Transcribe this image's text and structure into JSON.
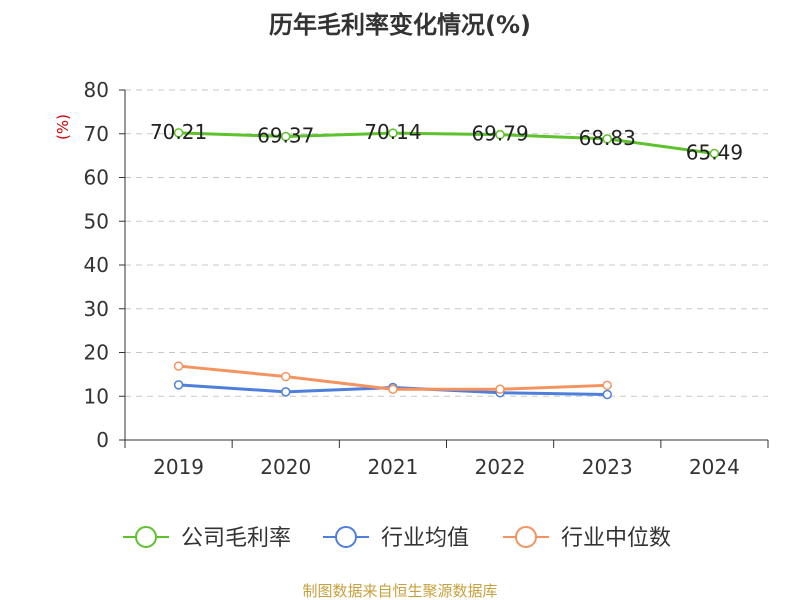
{
  "chart_data": {
    "type": "line",
    "title": "历年毛利率变化情况(%)",
    "ylabel": "(%)",
    "xlabel": "",
    "categories": [
      "2019",
      "2020",
      "2021",
      "2022",
      "2023",
      "2024"
    ],
    "ylim": [
      0,
      80
    ],
    "yticks": [
      0,
      10,
      20,
      30,
      40,
      50,
      60,
      70,
      80
    ],
    "grid": true,
    "legend_position": "bottom",
    "series": [
      {
        "name": "公司毛利率",
        "color": "#5dc22b",
        "values": [
          70.21,
          69.37,
          70.14,
          69.79,
          68.83,
          65.49
        ],
        "labels": [
          "70.21",
          "69.37",
          "70.14",
          "69.79",
          "68.83",
          "65.49"
        ]
      },
      {
        "name": "行业均值",
        "color": "#4f7fdc",
        "values": [
          12.6,
          11.0,
          12.0,
          10.8,
          10.4,
          null
        ],
        "labels": []
      },
      {
        "name": "行业中位数",
        "color": "#f4935e",
        "values": [
          16.9,
          14.5,
          11.6,
          11.6,
          12.5,
          null
        ],
        "labels": []
      }
    ],
    "source_note": "制图数据来自恒生聚源数据库"
  },
  "colors": {
    "title": "#333333",
    "axis": "#333333",
    "grid": "#c8c8c8",
    "ylabel": "#cc0000",
    "source": "#c8a03c"
  }
}
